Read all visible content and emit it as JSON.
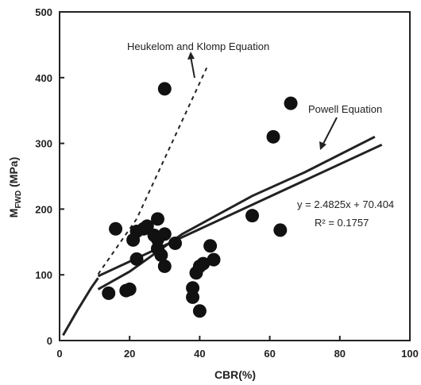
{
  "chart_data": {
    "type": "scatter",
    "xlabel": "CBR(%)",
    "ylabel": {
      "base": "M",
      "sub": "FWD",
      "unit": " (MPa)"
    },
    "xlim": [
      0,
      100
    ],
    "ylim": [
      0,
      500
    ],
    "xticks": [
      0,
      20,
      40,
      60,
      80,
      100
    ],
    "yticks": [
      0,
      100,
      200,
      300,
      400,
      500
    ],
    "grid": false,
    "points": [
      {
        "x": 14,
        "y": 72
      },
      {
        "x": 16,
        "y": 170
      },
      {
        "x": 19,
        "y": 76
      },
      {
        "x": 20,
        "y": 78
      },
      {
        "x": 21,
        "y": 153
      },
      {
        "x": 22,
        "y": 166
      },
      {
        "x": 22,
        "y": 124
      },
      {
        "x": 24,
        "y": 170
      },
      {
        "x": 25,
        "y": 174
      },
      {
        "x": 27,
        "y": 160
      },
      {
        "x": 28,
        "y": 185
      },
      {
        "x": 28,
        "y": 154
      },
      {
        "x": 28,
        "y": 140
      },
      {
        "x": 29,
        "y": 130
      },
      {
        "x": 30,
        "y": 162
      },
      {
        "x": 30,
        "y": 113
      },
      {
        "x": 30,
        "y": 383
      },
      {
        "x": 33,
        "y": 148
      },
      {
        "x": 38,
        "y": 80
      },
      {
        "x": 38,
        "y": 66
      },
      {
        "x": 39,
        "y": 103
      },
      {
        "x": 40,
        "y": 113
      },
      {
        "x": 40,
        "y": 45
      },
      {
        "x": 41,
        "y": 117
      },
      {
        "x": 43,
        "y": 144
      },
      {
        "x": 44,
        "y": 123
      },
      {
        "x": 55,
        "y": 190
      },
      {
        "x": 61,
        "y": 310
      },
      {
        "x": 63,
        "y": 168
      },
      {
        "x": 66,
        "y": 361
      }
    ],
    "lines": {
      "heukelom_klomp": [
        [
          11,
          101
        ],
        [
          22,
          185
        ],
        [
          42,
          415
        ]
      ],
      "regression": [
        [
          11,
          98
        ],
        [
          92,
          298
        ]
      ],
      "powell_power_curve": [
        [
          1,
          8
        ],
        [
          5,
          45
        ],
        [
          9,
          80
        ],
        [
          11,
          95
        ]
      ],
      "powell_upper": [
        [
          11,
          78
        ],
        [
          20,
          105
        ],
        [
          35,
          162
        ],
        [
          55,
          220
        ],
        [
          70,
          256
        ],
        [
          90,
          310
        ]
      ]
    },
    "annotations": {
      "heukelom_klomp": "Heukelom and Klomp Equation",
      "powell": "Powell Equation",
      "equation": "y = 2.4825x + 70.404",
      "r2": "R² = 0.1757"
    }
  }
}
